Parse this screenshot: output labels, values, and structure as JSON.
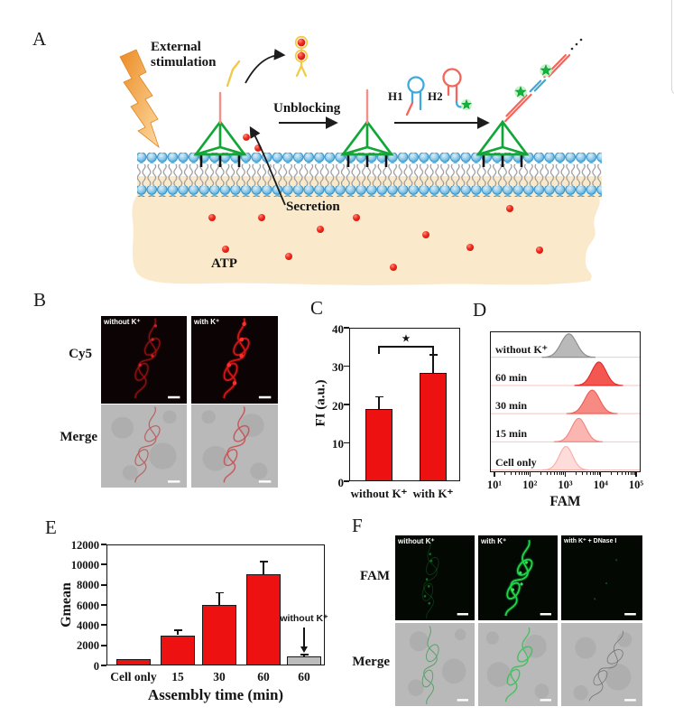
{
  "panels": {
    "a": {
      "letter": "A",
      "external_line1": "External",
      "external_line2": "stimulation",
      "unblocking": "Unblocking",
      "h1": "H1",
      "h2": "H2",
      "secretion": "Secretion",
      "atp": "ATP"
    },
    "b": {
      "letter": "B",
      "row_labels": [
        "Cy5",
        "Merge"
      ],
      "image_labels": [
        "without K⁺",
        "with K⁺"
      ]
    },
    "c": {
      "letter": "C"
    },
    "d": {
      "letter": "D"
    },
    "e": {
      "letter": "E"
    },
    "f": {
      "letter": "F",
      "row_labels": [
        "FAM",
        "Merge"
      ],
      "image_labels": [
        "without K⁺",
        "with K⁺",
        "with K⁺ + DNase I"
      ]
    }
  },
  "colors": {
    "bar_red": "#ee1111",
    "bar_gray": "#bcbcbc",
    "tetra_green": "#12a637",
    "membrane_blue": "#3f9fd4",
    "interior_tan": "#faeacb",
    "cy5_red": "#d31515",
    "fam_green": "#22d14a"
  },
  "chart_data": [
    {
      "id": "panel_c",
      "type": "bar",
      "title": "",
      "xlabel": "",
      "ylabel": "FI (a.u.)",
      "ylim": [
        0,
        40
      ],
      "yticks": [
        0,
        10,
        20,
        30,
        40
      ],
      "categories": [
        "without K⁺",
        "with K⁺"
      ],
      "values": [
        18.8,
        28.3
      ],
      "errors": [
        3.2,
        4.7
      ],
      "bar_color": "#ee1111",
      "significance": {
        "pair": [
          0,
          1
        ],
        "label": "★"
      },
      "grid": false,
      "legend": "none"
    },
    {
      "id": "panel_d",
      "type": "flow_histograms",
      "xlabel": "FAM",
      "xscale": "log",
      "xlim_log": [
        1,
        5
      ],
      "xticks": [
        "10¹",
        "10²",
        "10³",
        "10⁴",
        "10⁵"
      ],
      "series": [
        {
          "label": "without K⁺",
          "peak_value": 1250,
          "peak_log": 3.1,
          "sigma_log": 0.22,
          "fill": "#b9b9b9",
          "line": "#8a8a8a"
        },
        {
          "label": "60 min",
          "peak_value": 8900,
          "peak_log": 3.95,
          "sigma_log": 0.2,
          "fill": "#f4574f",
          "line": "#e02a26"
        },
        {
          "label": "30 min",
          "peak_value": 5750,
          "peak_log": 3.76,
          "sigma_log": 0.21,
          "fill": "#f88a84",
          "line": "#ef5a52"
        },
        {
          "label": "15 min",
          "peak_value": 2400,
          "peak_log": 3.38,
          "sigma_log": 0.2,
          "fill": "#fbb6b2",
          "line": "#f4827c"
        },
        {
          "label": "Cell only",
          "peak_value": 1050,
          "peak_log": 3.02,
          "sigma_log": 0.19,
          "fill": "#fddcda",
          "line": "#f8aca8"
        }
      ],
      "grid": false,
      "legend": "row-labels-left"
    },
    {
      "id": "panel_e",
      "type": "bar",
      "title": "",
      "xlabel": "Assembly time (min)",
      "ylabel": "Gmean",
      "ylim": [
        0,
        12000
      ],
      "yticks": [
        0,
        2000,
        4000,
        6000,
        8000,
        10000,
        12000
      ],
      "categories": [
        "Cell only",
        "15",
        "30",
        "60",
        "60"
      ],
      "values": [
        600,
        3000,
        6000,
        9050,
        900
      ],
      "errors": [
        0,
        500,
        1200,
        1250,
        180
      ],
      "bar_colors": [
        "#ee1111",
        "#ee1111",
        "#ee1111",
        "#ee1111",
        "#bcbcbc"
      ],
      "annotation": {
        "text": "without K⁺",
        "target_index": 4
      },
      "grid": false,
      "legend": "none"
    }
  ]
}
